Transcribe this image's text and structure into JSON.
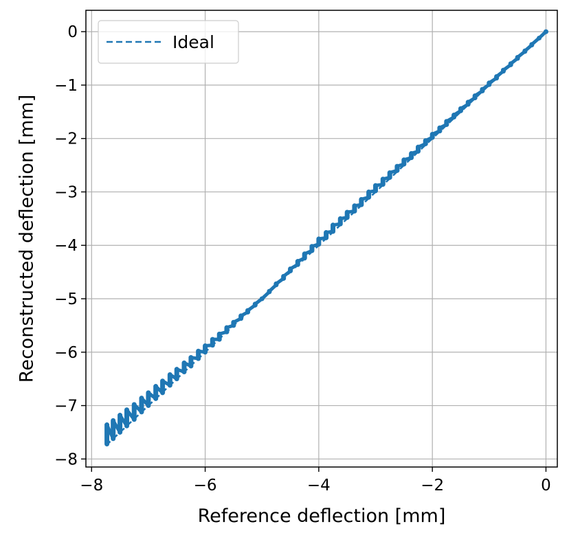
{
  "chart_data": {
    "type": "scatter",
    "title": "",
    "xlabel": "Reference deflection [mm]",
    "ylabel": "Reconstructed deflection [mm]",
    "xlim": [
      -8.1,
      0.2
    ],
    "ylim": [
      -8.15,
      0.4
    ],
    "xticks": [
      -8,
      -6,
      -4,
      -2,
      0
    ],
    "xtick_labels": [
      "−8",
      "−6",
      "−4",
      "−2",
      "0"
    ],
    "yticks": [
      0,
      -1,
      -2,
      -3,
      -4,
      -5,
      -6,
      -7,
      -8
    ],
    "ytick_labels": [
      "0",
      "−1",
      "−2",
      "−3",
      "−4",
      "−5",
      "−6",
      "−7",
      "−8"
    ],
    "grid": true,
    "legend": {
      "location": "upper-left",
      "entries": [
        {
          "label": "Ideal",
          "style": "dashed",
          "color": "#1f77b4"
        }
      ]
    },
    "series": [
      {
        "name": "Ideal",
        "type": "line",
        "style": "dashed",
        "color": "#1f77b4",
        "x": [
          -7.75,
          0
        ],
        "y": [
          -7.75,
          0
        ]
      },
      {
        "type": "scatter-band",
        "color": "#1f77b4",
        "description_of_points": "dense clusters forming short vertical segments along y = x",
        "x": [
          -7.73,
          -7.62,
          -7.5,
          -7.38,
          -7.25,
          -7.12,
          -7.0,
          -6.87,
          -6.75,
          -6.62,
          -6.5,
          -6.37,
          -6.25,
          -6.12,
          -6.0,
          -5.87,
          -5.75,
          -5.62,
          -5.5,
          -5.37,
          -5.25,
          -5.12,
          -5.0,
          -4.87,
          -4.75,
          -4.62,
          -4.5,
          -4.37,
          -4.25,
          -4.12,
          -4.0,
          -3.87,
          -3.75,
          -3.62,
          -3.5,
          -3.37,
          -3.25,
          -3.12,
          -3.0,
          -2.87,
          -2.75,
          -2.62,
          -2.5,
          -2.37,
          -2.25,
          -2.12,
          -2.0,
          -1.87,
          -1.75,
          -1.62,
          -1.5,
          -1.37,
          -1.25,
          -1.12,
          -1.0,
          -0.87,
          -0.75,
          -0.62,
          -0.5,
          -0.37,
          -0.25,
          -0.12,
          0.0
        ],
        "y_low": [
          -7.72,
          -7.62,
          -7.5,
          -7.38,
          -7.26,
          -7.12,
          -7.0,
          -6.87,
          -6.76,
          -6.62,
          -6.5,
          -6.37,
          -6.26,
          -6.12,
          -6.0,
          -5.87,
          -5.76,
          -5.62,
          -5.5,
          -5.37,
          -5.25,
          -5.12,
          -5.0,
          -4.87,
          -4.74,
          -4.62,
          -4.48,
          -4.36,
          -4.24,
          -4.1,
          -3.98,
          -3.86,
          -3.74,
          -3.6,
          -3.48,
          -3.36,
          -3.24,
          -3.1,
          -2.98,
          -2.86,
          -2.73,
          -2.6,
          -2.48,
          -2.36,
          -2.24,
          -2.1,
          -1.98,
          -1.86,
          -1.74,
          -1.6,
          -1.48,
          -1.36,
          -1.24,
          -1.11,
          -0.99,
          -0.87,
          -0.74,
          -0.62,
          -0.5,
          -0.37,
          -0.25,
          -0.12,
          0.0
        ],
        "y_high": [
          -7.36,
          -7.28,
          -7.18,
          -7.08,
          -6.98,
          -6.86,
          -6.76,
          -6.64,
          -6.54,
          -6.42,
          -6.32,
          -6.2,
          -6.1,
          -5.98,
          -5.88,
          -5.76,
          -5.66,
          -5.54,
          -5.44,
          -5.32,
          -5.22,
          -5.1,
          -5.0,
          -4.86,
          -4.72,
          -4.58,
          -4.44,
          -4.3,
          -4.16,
          -4.02,
          -3.88,
          -3.76,
          -3.62,
          -3.5,
          -3.38,
          -3.26,
          -3.14,
          -3.0,
          -2.88,
          -2.76,
          -2.64,
          -2.52,
          -2.4,
          -2.28,
          -2.16,
          -2.04,
          -1.92,
          -1.8,
          -1.68,
          -1.56,
          -1.44,
          -1.32,
          -1.2,
          -1.08,
          -0.96,
          -0.84,
          -0.72,
          -0.6,
          -0.48,
          -0.36,
          -0.24,
          -0.12,
          0.0
        ]
      }
    ]
  }
}
